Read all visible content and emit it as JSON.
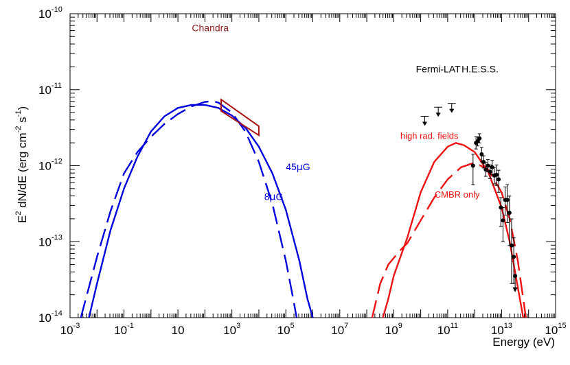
{
  "chart_data": {
    "type": "line",
    "title": "",
    "xlabel": "Energy (eV)",
    "ylabel": {
      "base": "E",
      "sup1": "2",
      "mid": " dN/dE (erg cm",
      "sup2": "-2",
      "mid2": " s",
      "sup3": "-1",
      "end": ")"
    },
    "x_log": true,
    "y_log": true,
    "xlim": [
      0.001,
      1000000000000000.0
    ],
    "ylim": [
      1e-14,
      1e-10
    ],
    "x_ticks": [
      {
        "exp": -3,
        "label_type": "pow",
        "base": "10",
        "sup": "-3"
      },
      {
        "exp": -1,
        "label_type": "pow",
        "base": "10",
        "sup": "-1"
      },
      {
        "exp": 1,
        "label_type": "plain",
        "text": "10"
      },
      {
        "exp": 3,
        "label_type": "pow",
        "base": "10",
        "sup": "3"
      },
      {
        "exp": 5,
        "label_type": "pow",
        "base": "10",
        "sup": "5"
      },
      {
        "exp": 7,
        "label_type": "pow",
        "base": "10",
        "sup": "7"
      },
      {
        "exp": 9,
        "label_type": "pow",
        "base": "10",
        "sup": "9"
      },
      {
        "exp": 11,
        "label_type": "pow",
        "base": "10",
        "sup": "11"
      },
      {
        "exp": 13,
        "label_type": "pow",
        "base": "10",
        "sup": "13"
      },
      {
        "exp": 15,
        "label_type": "pow",
        "base": "10",
        "sup": "15"
      }
    ],
    "y_ticks": [
      {
        "exp": -14,
        "base": "10",
        "sup": "-14"
      },
      {
        "exp": -13,
        "base": "10",
        "sup": "-13"
      },
      {
        "exp": -12,
        "base": "10",
        "sup": "-12"
      },
      {
        "exp": -11,
        "base": "10",
        "sup": "-11"
      },
      {
        "exp": -10,
        "base": "10",
        "sup": "-10"
      }
    ],
    "series": [
      {
        "name": "45μG synchrotron",
        "color": "#0000dd",
        "dash": "solid",
        "points": [
          [
            -2.3,
            -14.0
          ],
          [
            -2.0,
            -13.55
          ],
          [
            -1.5,
            -12.85
          ],
          [
            -1.0,
            -12.3
          ],
          [
            -0.5,
            -11.88
          ],
          [
            0.0,
            -11.55
          ],
          [
            0.5,
            -11.35
          ],
          [
            1.0,
            -11.24
          ],
          [
            1.5,
            -11.2
          ],
          [
            2.0,
            -11.2
          ],
          [
            2.5,
            -11.24
          ],
          [
            3.0,
            -11.34
          ],
          [
            3.5,
            -11.5
          ],
          [
            4.0,
            -11.75
          ],
          [
            4.5,
            -12.1
          ],
          [
            5.0,
            -12.58
          ],
          [
            5.5,
            -13.25
          ],
          [
            5.8,
            -13.75
          ],
          [
            6.0,
            -14.0
          ]
        ]
      },
      {
        "name": "8μG synchrotron",
        "color": "#0000dd",
        "dash": "long",
        "points": [
          [
            -2.6,
            -14.0
          ],
          [
            -2.3,
            -13.6
          ],
          [
            -2.0,
            -13.2
          ],
          [
            -1.5,
            -12.6
          ],
          [
            -1.0,
            -12.1
          ],
          [
            -0.5,
            -11.82
          ],
          [
            0.0,
            -11.62
          ],
          [
            0.5,
            -11.45
          ],
          [
            1.0,
            -11.32
          ],
          [
            1.5,
            -11.22
          ],
          [
            2.0,
            -11.16
          ],
          [
            2.3,
            -11.15
          ],
          [
            2.5,
            -11.17
          ],
          [
            3.0,
            -11.3
          ],
          [
            3.5,
            -11.55
          ],
          [
            4.0,
            -11.95
          ],
          [
            4.5,
            -12.5
          ],
          [
            5.0,
            -13.25
          ],
          [
            5.3,
            -13.8
          ],
          [
            5.4,
            -14.0
          ]
        ]
      },
      {
        "name": "high rad. fields",
        "color": "#ee1111",
        "dash": "solid",
        "points": [
          [
            8.6,
            -14.0
          ],
          [
            8.8,
            -13.75
          ],
          [
            9.0,
            -13.45
          ],
          [
            9.5,
            -12.95
          ],
          [
            10.0,
            -12.35
          ],
          [
            10.5,
            -11.95
          ],
          [
            11.0,
            -11.75
          ],
          [
            11.3,
            -11.7
          ],
          [
            11.6,
            -11.73
          ],
          [
            12.0,
            -11.82
          ],
          [
            12.5,
            -12.08
          ],
          [
            13.0,
            -12.55
          ],
          [
            13.3,
            -13.0
          ],
          [
            13.6,
            -13.6
          ],
          [
            13.8,
            -14.0
          ]
        ]
      },
      {
        "name": "CMBR only",
        "color": "#ee1111",
        "dash": "long",
        "points": [
          [
            8.2,
            -14.0
          ],
          [
            8.5,
            -13.55
          ],
          [
            8.8,
            -13.3
          ],
          [
            9.2,
            -13.13
          ],
          [
            9.5,
            -13.02
          ],
          [
            10.0,
            -12.72
          ],
          [
            10.5,
            -12.42
          ],
          [
            11.0,
            -12.18
          ],
          [
            11.5,
            -12.02
          ],
          [
            12.0,
            -11.96
          ],
          [
            12.5,
            -12.05
          ],
          [
            13.0,
            -12.35
          ],
          [
            13.3,
            -12.7
          ],
          [
            13.6,
            -13.25
          ],
          [
            13.9,
            -14.0
          ]
        ]
      }
    ],
    "chandra_bowtie": {
      "color": "#aa1111",
      "upper": [
        [
          2.6,
          -11.13
        ],
        [
          4.0,
          -11.48
        ]
      ],
      "lower": [
        [
          2.6,
          -11.28
        ],
        [
          4.0,
          -11.6
        ]
      ]
    },
    "fermi_upper_limits": [
      {
        "x_range": [
          10.0,
          10.3
        ],
        "y": -11.35
      },
      {
        "x_range": [
          10.5,
          10.8
        ],
        "y": -11.23
      },
      {
        "x_range": [
          11.0,
          11.3
        ],
        "y": -11.18
      }
    ],
    "hess_points": [
      {
        "x": 11.94,
        "y": -12.0,
        "lo": -12.25,
        "hi": -11.85
      },
      {
        "x": 12.05,
        "y": -11.7,
        "lo": -11.78,
        "hi": -11.62
      },
      {
        "x": 12.11,
        "y": -11.68,
        "lo": -11.74,
        "hi": -11.62
      },
      {
        "x": 12.18,
        "y": -11.64,
        "lo": -11.7,
        "hi": -11.58
      },
      {
        "x": 12.26,
        "y": -11.85,
        "lo": -11.95,
        "hi": -11.76
      },
      {
        "x": 12.33,
        "y": -11.95,
        "lo": -12.03,
        "hi": -11.87
      },
      {
        "x": 12.41,
        "y": -12.05,
        "lo": -12.14,
        "hi": -11.96
      },
      {
        "x": 12.49,
        "y": -12.0,
        "lo": -12.08,
        "hi": -11.92
      },
      {
        "x": 12.57,
        "y": -12.08,
        "lo": -12.17,
        "hi": -11.99
      },
      {
        "x": 12.65,
        "y": -12.02,
        "lo": -12.12,
        "hi": -11.93
      },
      {
        "x": 12.73,
        "y": -12.13,
        "lo": -12.24,
        "hi": -12.02
      },
      {
        "x": 12.81,
        "y": -12.12,
        "lo": -12.26,
        "hi": -11.99
      },
      {
        "x": 12.89,
        "y": -12.18,
        "lo": -12.35,
        "hi": -12.06
      },
      {
        "x": 12.97,
        "y": -12.55,
        "lo": -12.8,
        "hi": -12.42
      },
      {
        "x": 13.05,
        "y": -12.72,
        "lo": -13.0,
        "hi": -12.55
      },
      {
        "x": 13.13,
        "y": -12.45,
        "lo": -12.65,
        "hi": -12.28
      },
      {
        "x": 13.21,
        "y": -12.45,
        "lo": -12.75,
        "hi": -12.25
      },
      {
        "x": 13.29,
        "y": -12.62,
        "lo": -13.05,
        "hi": -12.4
      },
      {
        "x": 13.37,
        "y": -13.05,
        "lo": -13.55,
        "hi": -12.7
      },
      {
        "x": 13.45,
        "y": -13.2,
        "lo": -13.55,
        "hi": -12.95
      }
    ],
    "hess_upper_limit": {
      "x": 13.5,
      "y": -13.45,
      "arrow_to": -13.62
    },
    "annotations": [
      {
        "id": "chandra",
        "text": "Chandra",
        "color": "#8b1a1a",
        "x": 2.2,
        "y": -10.23
      },
      {
        "id": "fermi",
        "text": "Fermi-LAT",
        "color": "#000000",
        "x": 10.65,
        "y": -10.77
      },
      {
        "id": "hess",
        "text": "H.E.S.S.",
        "color": "#000000",
        "x": 12.2,
        "y": -10.77
      },
      {
        "id": "high_rad",
        "text": "high rad. fields",
        "color": "#ee1111",
        "x": 10.32,
        "y": -11.65
      },
      {
        "id": "cmbr",
        "text": "CMBR only",
        "color": "#ee1111",
        "x": 11.35,
        "y": -12.42
      }
    ],
    "field_labels": [
      {
        "id": "b45",
        "num": "45",
        "mu": "μ",
        "unit": "G",
        "color": "#0000dd",
        "x": 5.45,
        "y": -12.06
      },
      {
        "id": "b8",
        "num": "8",
        "mu": "μ",
        "unit": "G",
        "color": "#0000dd",
        "x": 4.55,
        "y": -12.45
      }
    ]
  }
}
